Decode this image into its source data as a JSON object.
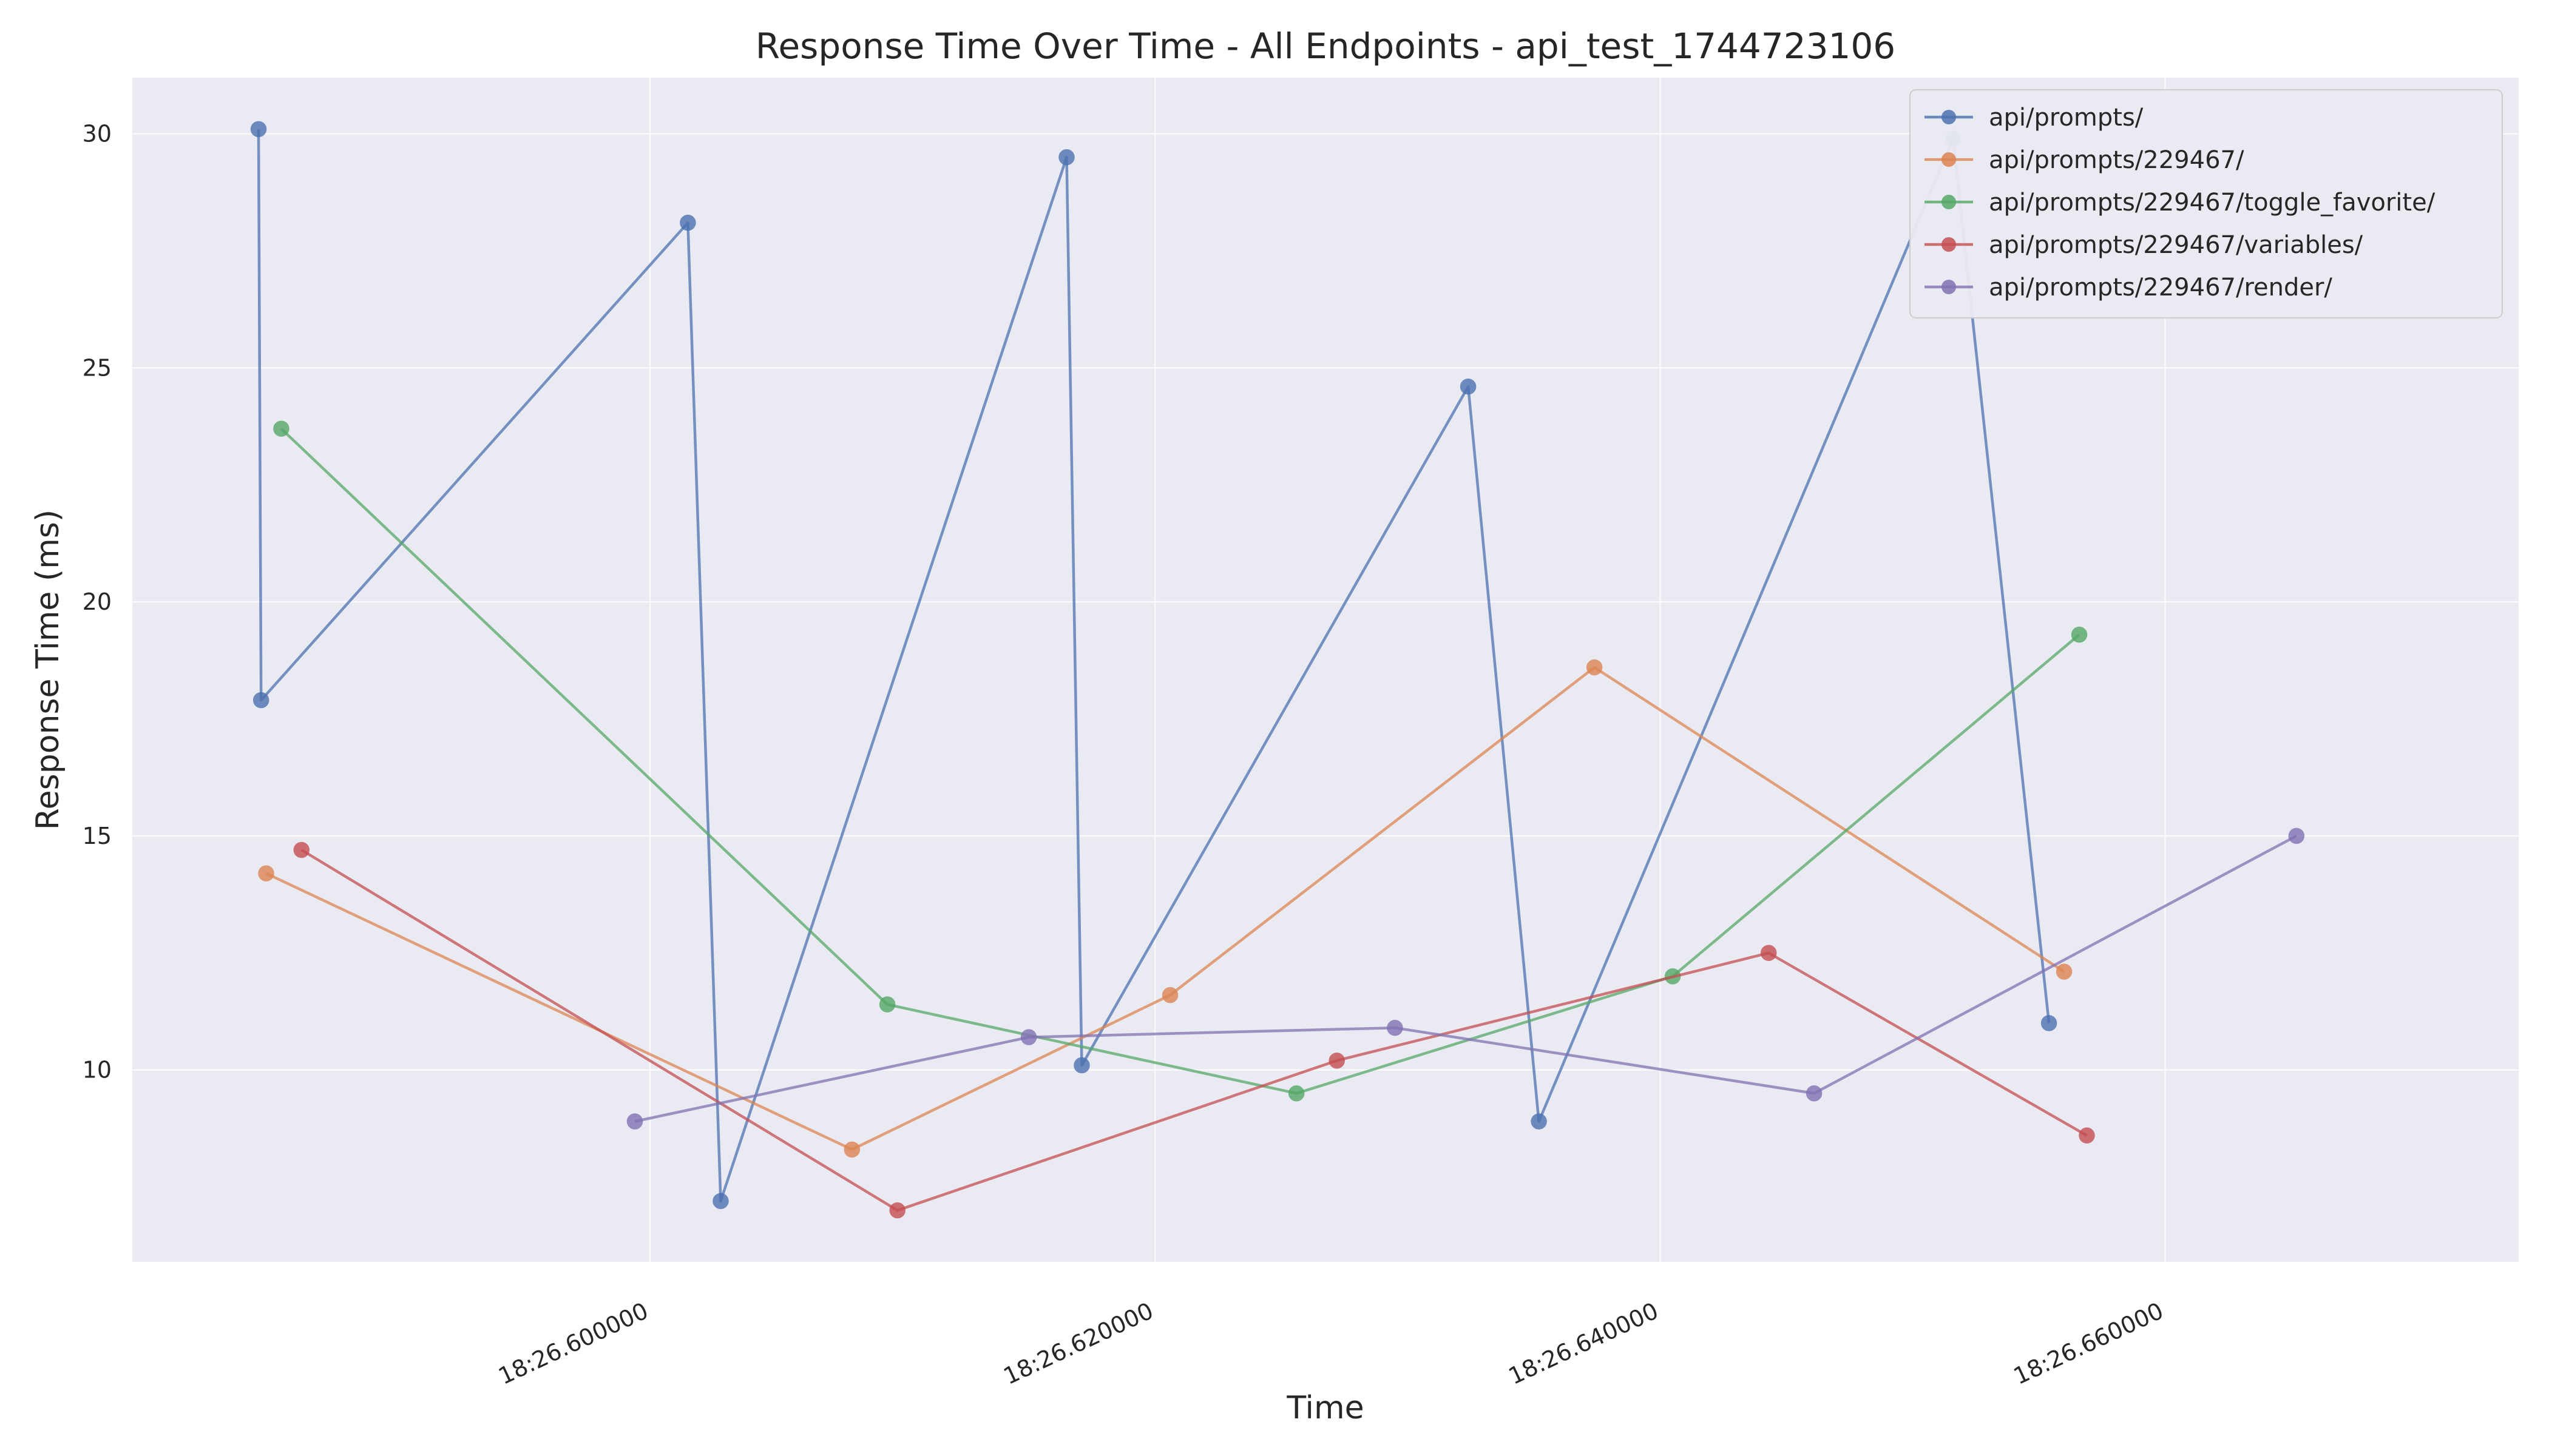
{
  "chart_data": {
    "type": "line",
    "title": "Response Time Over Time - All Endpoints - api_test_1744723106",
    "xlabel": "Time",
    "ylabel": "Response Time (ms)",
    "x_unit": "seconds past 18:26",
    "xlim": [
      26.5795,
      26.674
    ],
    "ylim": [
      5.9,
      31.2
    ],
    "grid": true,
    "legend_position": "top-right",
    "x_ticks": [
      {
        "value": 26.6,
        "label": "18:26.600000"
      },
      {
        "value": 26.62,
        "label": "18:26.620000"
      },
      {
        "value": 26.64,
        "label": "18:26.640000"
      },
      {
        "value": 26.66,
        "label": "18:26.660000"
      }
    ],
    "y_ticks": [
      {
        "value": 10,
        "label": "10"
      },
      {
        "value": 15,
        "label": "15"
      },
      {
        "value": 20,
        "label": "20"
      },
      {
        "value": 25,
        "label": "25"
      },
      {
        "value": 30,
        "label": "30"
      }
    ],
    "series": [
      {
        "name": "api/prompts/",
        "color": "#4c72b0",
        "x": [
          26.5845,
          26.5846,
          26.6015,
          26.6028,
          26.6165,
          26.6171,
          26.6324,
          26.6352,
          26.6516,
          26.6554
        ],
        "y": [
          30.1,
          17.9,
          28.1,
          7.2,
          29.5,
          10.1,
          24.6,
          8.9,
          29.9,
          11.0
        ]
      },
      {
        "name": "api/prompts/229467/",
        "color": "#dd8452",
        "x": [
          26.5848,
          26.608,
          26.6206,
          26.6374,
          26.656
        ],
        "y": [
          14.2,
          8.3,
          11.6,
          18.6,
          12.1
        ]
      },
      {
        "name": "api/prompts/229467/toggle_favorite/",
        "color": "#55a868",
        "x": [
          26.5854,
          26.6094,
          26.6256,
          26.6405,
          26.6566
        ],
        "y": [
          23.7,
          11.4,
          9.5,
          12.0,
          19.3
        ]
      },
      {
        "name": "api/prompts/229467/variables/",
        "color": "#c44e52",
        "x": [
          26.5862,
          26.6098,
          26.6272,
          26.6443,
          26.6569
        ],
        "y": [
          14.7,
          7.0,
          10.2,
          12.5,
          8.6
        ]
      },
      {
        "name": "api/prompts/229467/render/",
        "color": "#8172b3",
        "x": [
          26.5994,
          26.615,
          26.6295,
          26.6461,
          26.6652
        ],
        "y": [
          8.9,
          10.7,
          10.9,
          9.5,
          15.0
        ]
      }
    ]
  }
}
